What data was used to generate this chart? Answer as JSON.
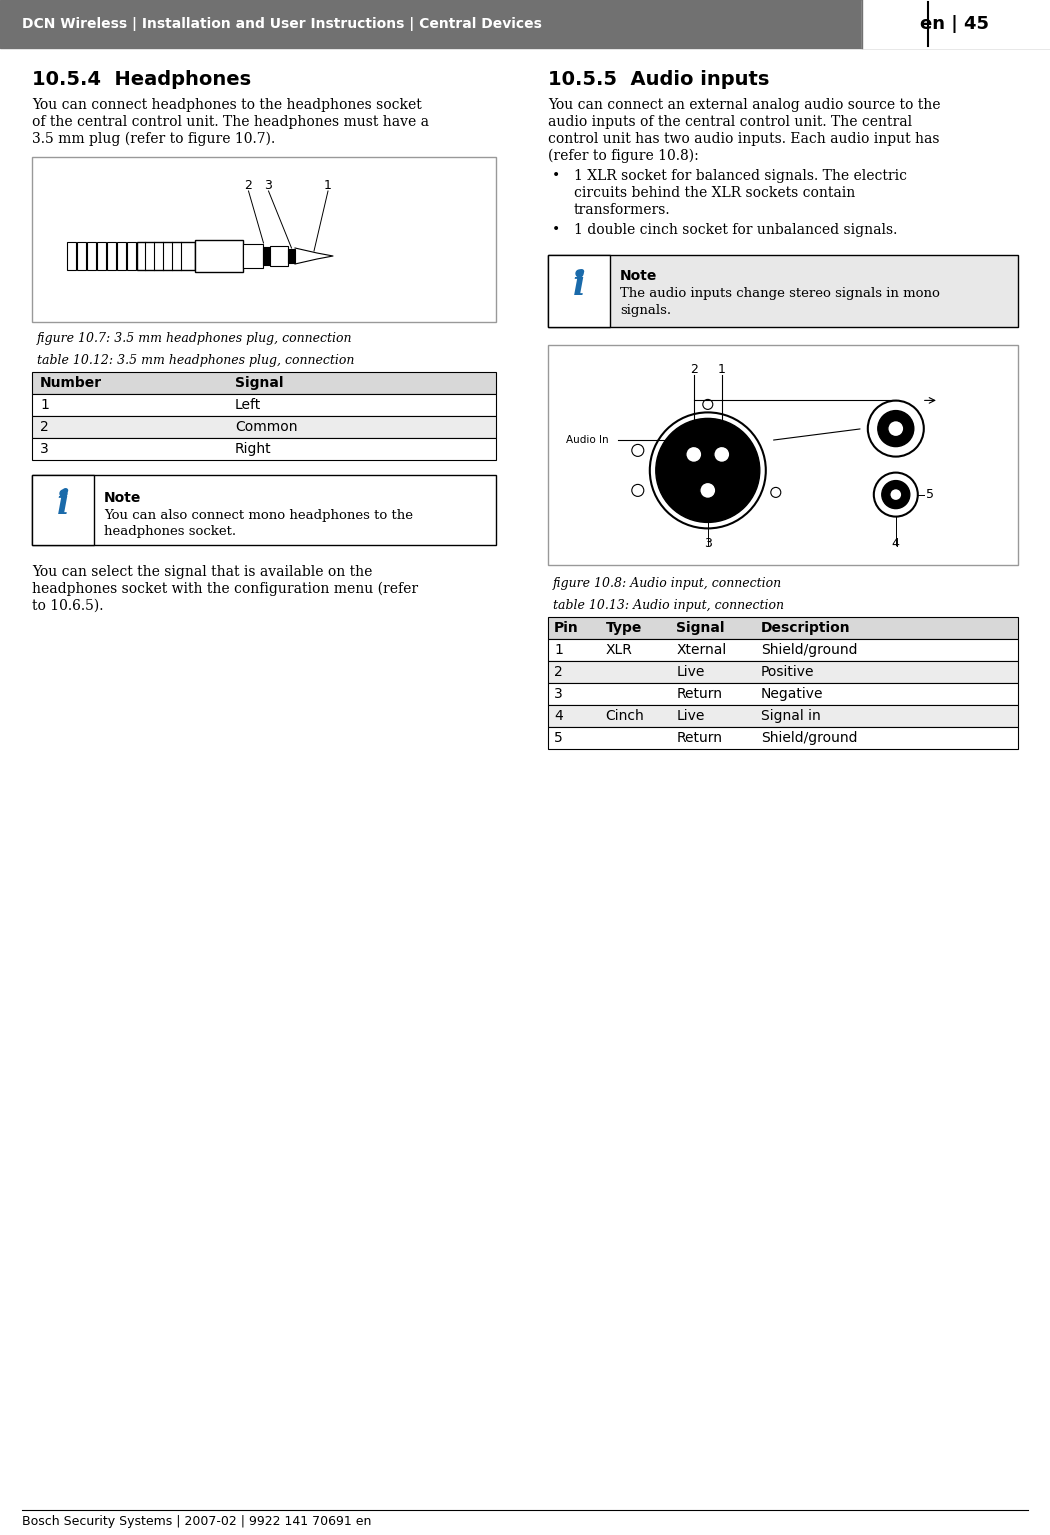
{
  "header_bg": "#717171",
  "header_text": "DCN Wireless | Installation and User Instructions | Central Devices",
  "header_page": "en | 45",
  "footer_text": "Bosch Security Systems | 2007-02 | 9922 141 70691 en",
  "section_left_title": "10.5.4  Headphones",
  "section_left_body1": "You can connect headphones to the headphones socket",
  "section_left_body2": "of the central control unit. The headphones must have a",
  "section_left_body3": "3.5 mm plug (refer to figure 10.7).",
  "fig_left_caption": "figure 10.7: 3.5 mm headphones plug, connection",
  "table_left_caption": "table 10.12: 3.5 mm headphones plug, connection",
  "table_left_headers": [
    "Number",
    "Signal"
  ],
  "table_left_rows": [
    [
      "1",
      "Left"
    ],
    [
      "2",
      "Common"
    ],
    [
      "3",
      "Right"
    ]
  ],
  "note_left_title": "Note",
  "note_left_body1": "You can also connect mono headphones to the",
  "note_left_body2": "headphones socket.",
  "bottom_left_text1": "You can select the signal that is available on the",
  "bottom_left_text2": "headphones socket with the configuration menu (refer",
  "bottom_left_text3": "to 10.6.5).",
  "section_right_title": "10.5.5  Audio inputs",
  "section_right_body1": "You can connect an external analog audio source to the",
  "section_right_body2": "audio inputs of the central control unit. The central",
  "section_right_body3": "control unit has two audio inputs. Each audio input has",
  "section_right_body4": "(refer to figure 10.8):",
  "bullet_right_1a": "1 XLR socket for balanced signals. The electric",
  "bullet_right_1b": "circuits behind the XLR sockets contain",
  "bullet_right_1c": "transformers.",
  "bullet_right_2": "1 double cinch socket for unbalanced signals.",
  "note_right_title": "Note",
  "note_right_body1": "The audio inputs change stereo signals in mono",
  "note_right_body2": "signals.",
  "fig_right_caption": "figure 10.8: Audio input, connection",
  "table_right_caption": "table 10.13: Audio input, connection",
  "table_right_headers": [
    "Pin",
    "Type",
    "Signal",
    "Description"
  ],
  "table_right_rows": [
    [
      "1",
      "XLR",
      "Xternal",
      "Shield/ground"
    ],
    [
      "2",
      "",
      "Live",
      "Positive"
    ],
    [
      "3",
      "",
      "Return",
      "Negative"
    ],
    [
      "4",
      "Cinch",
      "Live",
      "Signal in"
    ],
    [
      "5",
      "",
      "Return",
      "Shield/ground"
    ]
  ],
  "bg_color": "#ffffff",
  "header_color": "#717171",
  "table_header_bg": "#d8d8d8",
  "table_row_alt_bg": "#ececec",
  "note_bg_left": "#ffffff",
  "note_bg_right": "#e8e8e8",
  "note_icon_bg": "#ffffff",
  "info_icon_color": "#1a6aaa",
  "fig_box_border": "#999999"
}
